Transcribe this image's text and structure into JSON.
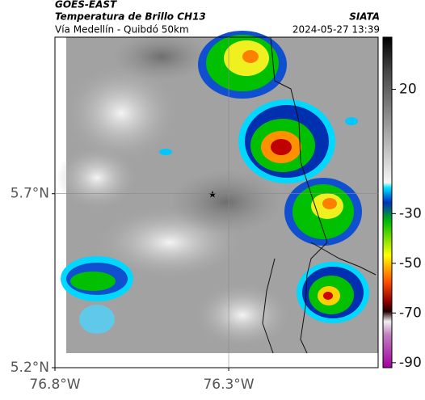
{
  "header": {
    "source": "GOES-EAST",
    "title": "Temperatura de Brillo CH13",
    "brand": "SIATA",
    "subtitle": "Vía Medellín - Quibdó 50km",
    "timestamp": "2024-05-27 13:39"
  },
  "map": {
    "xlim": [
      -76.8,
      -75.87
    ],
    "ylim": [
      5.2,
      6.15
    ],
    "xticks": [
      {
        "value": -76.8,
        "label": "76.8°W"
      },
      {
        "value": -76.3,
        "label": "76.3°W"
      }
    ],
    "yticks": [
      {
        "value": 5.2,
        "label": "5.2°N"
      },
      {
        "value": 5.7,
        "label": "5.7°N"
      }
    ],
    "grid": true
  },
  "colorbar": {
    "ylim": [
      -92,
      41
    ],
    "yticks": [
      20,
      -30,
      -50,
      -70,
      -90
    ]
  }
}
